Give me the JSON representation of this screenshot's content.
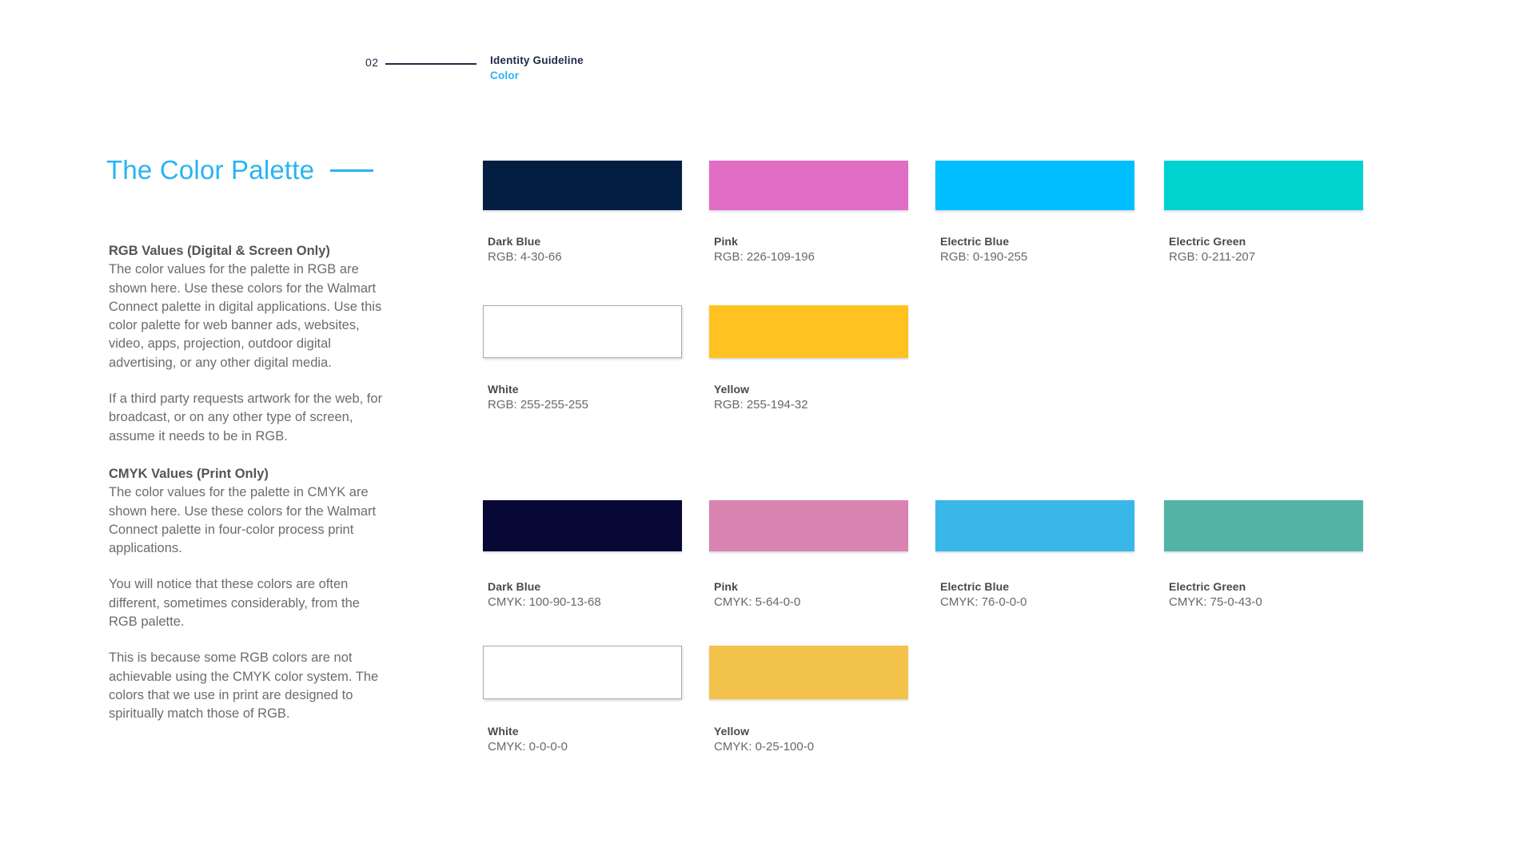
{
  "header": {
    "page_number": "02",
    "section": "Identity Guideline",
    "subsection": "Color"
  },
  "title": "The Color Palette",
  "accent": {
    "blue": "#29B4F0",
    "navy": "#1F2A44"
  },
  "copy": {
    "rgb_heading": "RGB Values (Digital & Screen Only)",
    "rgb_para1": "The color values for the palette in RGB are shown here. Use these colors for the Walmart Connect palette in digital applications. Use this color palette for web banner ads, websites, video, apps, projection, outdoor digital advertising, or any other digital media.",
    "rgb_para2": "If a third party requests artwork for the web, for broadcast, or on any other type of screen, assume it needs to be in RGB.",
    "cmyk_heading": "CMYK Values (Print Only)",
    "cmyk_para1": "The color values for the palette in CMYK are shown here. Use these colors for the Walmart Connect palette in four-color process print applications.",
    "cmyk_para2": "You will notice that these colors are often different, sometimes considerably, from the RGB palette.",
    "cmyk_para3": "This is because some RGB colors are not achievable using the CMYK color system. The colors that we use in print are designed to spiritually match those of RGB."
  },
  "rgb_swatches": [
    {
      "name": "Dark Blue",
      "value": "RGB: 4-30-66",
      "hex": "#041E42"
    },
    {
      "name": "Pink",
      "value": "RGB: 226-109-196",
      "hex": "#E26DC4"
    },
    {
      "name": "Electric Blue",
      "value": "RGB: 0-190-255",
      "hex": "#00BEFF"
    },
    {
      "name": "Electric Green",
      "value": "RGB: 0-211-207",
      "hex": "#00D3CF"
    },
    {
      "name": "White",
      "value": "RGB: 255-255-255",
      "hex": "#FFFFFF"
    },
    {
      "name": "Yellow",
      "value": "RGB: 255-194-32",
      "hex": "#FFC220"
    }
  ],
  "cmyk_swatches": [
    {
      "name": "Dark Blue",
      "value": "CMYK: 100-90-13-68",
      "hex": "#070735"
    },
    {
      "name": "Pink",
      "value": "CMYK: 5-64-0-0",
      "hex": "#D983B1"
    },
    {
      "name": "Electric Blue",
      "value": "CMYK: 76-0-0-0",
      "hex": "#3AB7E9"
    },
    {
      "name": "Electric Green",
      "value": "CMYK: 75-0-43-0",
      "hex": "#52B4A5"
    },
    {
      "name": "White",
      "value": "CMYK: 0-0-0-0",
      "hex": "#FFFFFF"
    },
    {
      "name": "Yellow",
      "value": "CMYK: 0-25-100-0",
      "hex": "#F2C24B"
    }
  ]
}
